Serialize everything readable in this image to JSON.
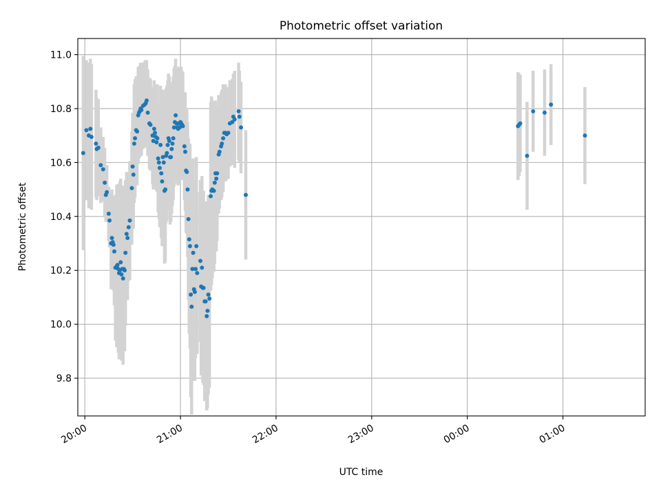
{
  "chart_data": {
    "type": "scatter",
    "title": "Photometric offset variation",
    "xlabel": "UTC time",
    "ylabel": "Photometric offset",
    "x_ticks": [
      "20:00",
      "21:00",
      "22:00",
      "23:00",
      "00:00",
      "01:00"
    ],
    "x_tick_minutes": [
      0,
      60,
      120,
      180,
      240,
      300
    ],
    "x_range_minutes": [
      -4.4,
      351.6
    ],
    "y_ticks": [
      "9.8",
      "10.0",
      "10.2",
      "10.4",
      "10.6",
      "10.8",
      "11.0"
    ],
    "y_tick_values": [
      9.8,
      10.0,
      10.2,
      10.4,
      10.6,
      10.8,
      11.0
    ],
    "ylim": [
      9.66,
      11.06
    ],
    "grid": true,
    "marker_color": "#1f77b4",
    "errorbar_color": "#d3d3d3",
    "x_unit": "minutes after 20:00 UTC",
    "points": [
      [
        -1,
        10.635,
        0.36
      ],
      [
        1,
        10.72,
        0.26
      ],
      [
        2.5,
        10.7,
        0.27
      ],
      [
        3.5,
        10.725,
        0.26
      ],
      [
        4.2,
        10.695,
        0.27
      ],
      [
        7,
        10.67,
        0.2
      ],
      [
        7.5,
        10.65,
        0.19
      ],
      [
        8.5,
        10.655,
        0.18
      ],
      [
        10,
        10.59,
        0.14
      ],
      [
        11.5,
        10.575,
        0.12
      ],
      [
        12.5,
        10.525,
        0.13
      ],
      [
        13.2,
        10.48,
        0.1
      ],
      [
        13.8,
        10.49,
        0.1
      ],
      [
        15,
        10.41,
        0.1
      ],
      [
        15.5,
        10.385,
        0.1
      ],
      [
        16.5,
        10.3,
        0.17
      ],
      [
        17,
        10.32,
        0.18
      ],
      [
        17.5,
        10.305,
        0.17
      ],
      [
        18,
        10.295,
        0.17
      ],
      [
        18.5,
        10.27,
        0.2
      ],
      [
        19.2,
        10.21,
        0.27
      ],
      [
        20,
        10.215,
        0.3
      ],
      [
        20.5,
        10.22,
        0.3
      ],
      [
        21,
        10.205,
        0.31
      ],
      [
        21.5,
        10.19,
        0.32
      ],
      [
        22,
        10.2,
        0.33
      ],
      [
        22.5,
        10.23,
        0.31
      ],
      [
        23,
        10.185,
        0.32
      ],
      [
        23.5,
        10.205,
        0.31
      ],
      [
        24,
        10.17,
        0.32
      ],
      [
        24.5,
        10.205,
        0.3
      ],
      [
        25,
        10.2,
        0.3
      ],
      [
        25.5,
        10.265,
        0.27
      ],
      [
        26.2,
        10.335,
        0.23
      ],
      [
        26.8,
        10.32,
        0.23
      ],
      [
        27.5,
        10.36,
        0.2
      ],
      [
        28.2,
        10.385,
        0.22
      ],
      [
        29.5,
        10.505,
        0.21
      ],
      [
        30,
        10.585,
        0.2
      ],
      [
        30.5,
        10.555,
        0.2
      ],
      [
        31,
        10.67,
        0.22
      ],
      [
        31.5,
        10.69,
        0.22
      ],
      [
        32.2,
        10.72,
        0.2
      ],
      [
        32.8,
        10.715,
        0.2
      ],
      [
        33.5,
        10.775,
        0.18
      ],
      [
        34,
        10.785,
        0.17
      ],
      [
        34.5,
        10.79,
        0.17
      ],
      [
        35,
        10.8,
        0.17
      ],
      [
        35.5,
        10.795,
        0.17
      ],
      [
        36.5,
        10.81,
        0.16
      ],
      [
        37.5,
        10.815,
        0.16
      ],
      [
        38.2,
        10.82,
        0.16
      ],
      [
        38.8,
        10.83,
        0.15
      ],
      [
        39.5,
        10.785,
        0.16
      ],
      [
        40.5,
        10.745,
        0.17
      ],
      [
        41.2,
        10.74,
        0.17
      ],
      [
        42.5,
        10.7,
        0.18
      ],
      [
        43,
        10.68,
        0.18
      ],
      [
        43.5,
        10.725,
        0.18
      ],
      [
        44,
        10.71,
        0.18
      ],
      [
        44.5,
        10.695,
        0.18
      ],
      [
        45,
        10.675,
        0.18
      ],
      [
        45.5,
        10.69,
        0.2
      ],
      [
        46,
        10.615,
        0.2
      ],
      [
        46.5,
        10.6,
        0.21
      ],
      [
        47,
        10.58,
        0.22
      ],
      [
        47.5,
        10.665,
        0.22
      ],
      [
        48,
        10.56,
        0.24
      ],
      [
        48.5,
        10.53,
        0.24
      ],
      [
        49,
        10.62,
        0.25
      ],
      [
        49.5,
        10.6,
        0.25
      ],
      [
        50,
        10.495,
        0.27
      ],
      [
        50.5,
        10.5,
        0.27
      ],
      [
        51,
        10.625,
        0.25
      ],
      [
        51.5,
        10.635,
        0.25
      ],
      [
        52,
        10.665,
        0.24
      ],
      [
        52.5,
        10.69,
        0.24
      ],
      [
        53,
        10.68,
        0.24
      ],
      [
        53.5,
        10.62,
        0.25
      ],
      [
        54,
        10.62,
        0.24
      ],
      [
        54.5,
        10.65,
        0.24
      ],
      [
        55,
        10.67,
        0.23
      ],
      [
        55.5,
        10.69,
        0.23
      ],
      [
        56,
        10.73,
        0.22
      ],
      [
        56.5,
        10.75,
        0.21
      ],
      [
        57,
        10.775,
        0.21
      ],
      [
        57.5,
        10.745,
        0.2
      ],
      [
        58,
        10.73,
        0.21
      ],
      [
        58.5,
        10.725,
        0.21
      ],
      [
        59,
        10.745,
        0.21
      ],
      [
        59.5,
        10.73,
        0.21
      ],
      [
        60,
        10.75,
        0.2
      ],
      [
        60.5,
        10.745,
        0.21
      ],
      [
        61,
        10.74,
        0.2
      ],
      [
        61.5,
        10.735,
        0.2
      ],
      [
        62.5,
        10.66,
        0.2
      ],
      [
        63,
        10.64,
        0.22
      ],
      [
        63.5,
        10.57,
        0.23
      ],
      [
        64,
        10.565,
        0.23
      ],
      [
        64.5,
        10.5,
        0.25
      ],
      [
        65,
        10.39,
        0.3
      ],
      [
        65.5,
        10.315,
        0.35
      ],
      [
        66,
        10.29,
        0.38
      ],
      [
        66.5,
        10.11,
        0.38
      ],
      [
        67,
        10.065,
        0.4
      ],
      [
        67.5,
        10.205,
        0.4
      ],
      [
        68,
        10.265,
        0.35
      ],
      [
        68.5,
        10.13,
        0.34
      ],
      [
        69,
        10.12,
        0.33
      ],
      [
        69.5,
        10.205,
        0.33
      ],
      [
        70,
        10.29,
        0.33
      ],
      [
        70.5,
        10.19,
        0.3
      ],
      [
        72.5,
        10.235,
        0.3
      ],
      [
        73,
        10.14,
        0.33
      ],
      [
        73.5,
        10.21,
        0.34
      ],
      [
        74,
        10.135,
        0.35
      ],
      [
        74.5,
        10.135,
        0.36
      ],
      [
        75.2,
        10.085,
        0.37
      ],
      [
        75.8,
        10.085,
        0.37
      ],
      [
        76.5,
        10.03,
        0.35
      ],
      [
        77,
        10.05,
        0.36
      ],
      [
        77.5,
        10.11,
        0.37
      ],
      [
        78.2,
        10.095,
        0.33
      ],
      [
        79,
        10.475,
        0.35
      ],
      [
        79.5,
        10.495,
        0.35
      ],
      [
        80,
        10.5,
        0.33
      ],
      [
        81,
        10.495,
        0.3
      ],
      [
        81.5,
        10.525,
        0.3
      ],
      [
        82,
        10.56,
        0.27
      ],
      [
        82.5,
        10.54,
        0.27
      ],
      [
        83,
        10.56,
        0.25
      ],
      [
        84,
        10.63,
        0.22
      ],
      [
        84.5,
        10.64,
        0.21
      ],
      [
        85.5,
        10.66,
        0.2
      ],
      [
        86,
        10.67,
        0.2
      ],
      [
        86.8,
        10.69,
        0.2
      ],
      [
        87.5,
        10.71,
        0.18
      ],
      [
        88.2,
        10.71,
        0.18
      ],
      [
        89,
        10.705,
        0.17
      ],
      [
        90,
        10.71,
        0.17
      ],
      [
        91,
        10.745,
        0.16
      ],
      [
        92.5,
        10.75,
        0.16
      ],
      [
        93.2,
        10.77,
        0.16
      ],
      [
        94,
        10.76,
        0.18
      ],
      [
        96.5,
        10.79,
        0.18
      ],
      [
        97,
        10.77,
        0.17
      ],
      [
        98,
        10.73,
        0.17
      ],
      [
        101,
        10.48,
        0.24
      ],
      [
        271.8,
        10.735,
        0.2
      ],
      [
        272.5,
        10.74,
        0.19
      ],
      [
        273.2,
        10.745,
        0.18
      ],
      [
        277.5,
        10.625,
        0.2
      ],
      [
        281.3,
        10.79,
        0.15
      ],
      [
        288.5,
        10.785,
        0.16
      ],
      [
        292.5,
        10.815,
        0.15
      ],
      [
        313.8,
        10.7,
        0.18
      ]
    ]
  }
}
